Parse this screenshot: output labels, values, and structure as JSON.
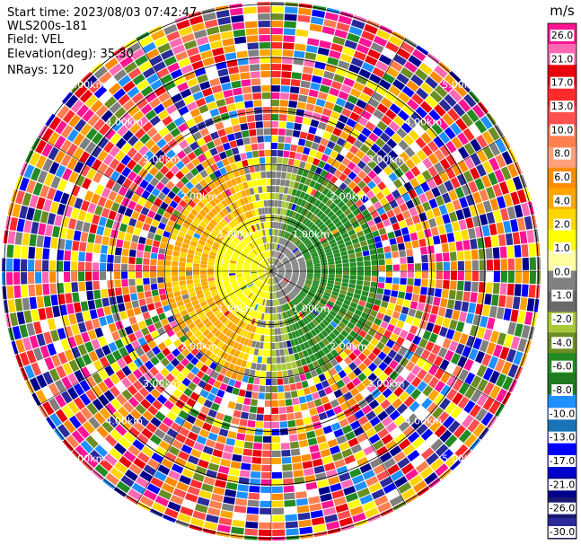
{
  "header": {
    "start_time": "Start time: 2023/08/03 07:42:47",
    "instrument": "WLS200s-181",
    "field": "Field: VEL",
    "elevation": "Elevation(deg): 35.30",
    "nrays": "NRays: 120"
  },
  "chart_data": {
    "type": "heatmap",
    "projection": "polar PPI",
    "rays": 120,
    "range_rings_km": [
      1.0,
      2.0,
      3.0,
      4.0,
      5.0
    ],
    "range_ring_labels": [
      "1.00km",
      "2.00km",
      "3.00km",
      "4.00km",
      "5.00km"
    ],
    "colorbar": {
      "unit": "m/s",
      "ticks": [
        "26.0",
        "21.0",
        "17.0",
        "13.0",
        "10.0",
        "8.0",
        "6.0",
        "4.0",
        "2.0",
        "1.0",
        "0.0",
        "-1.0",
        "-2.0",
        "-4.0",
        "-6.0",
        "-8.0",
        "-10.0",
        "-13.0",
        "-17.0",
        "-21.0",
        "-26.0",
        "-30.0"
      ],
      "colors": [
        "#ff1493",
        "#ff69b4",
        "#e8000b",
        "#ff2b2b",
        "#ff4f4f",
        "#ff7f50",
        "#ffa07a",
        "#ff8c00",
        "#ffa500",
        "#ffd700",
        "#ffff00",
        "#ffffa0",
        "#808080",
        "#696969",
        "#a9c93b",
        "#6b8e23",
        "#228b22",
        "#1e7b1e",
        "#1e90ff",
        "#1873b8",
        "#0000ff",
        "#0000cd",
        "#00008b",
        "#191970",
        "#2a2a9a"
      ],
      "vmin": -30.0,
      "vmax": 30.0
    },
    "inner_pattern": {
      "approaching_sector": "west (yellow / orange, +1 to +6 m/s)",
      "receding_sector": "east (green, -2 to -8 m/s)",
      "noise_beyond_km": 3.4
    }
  }
}
